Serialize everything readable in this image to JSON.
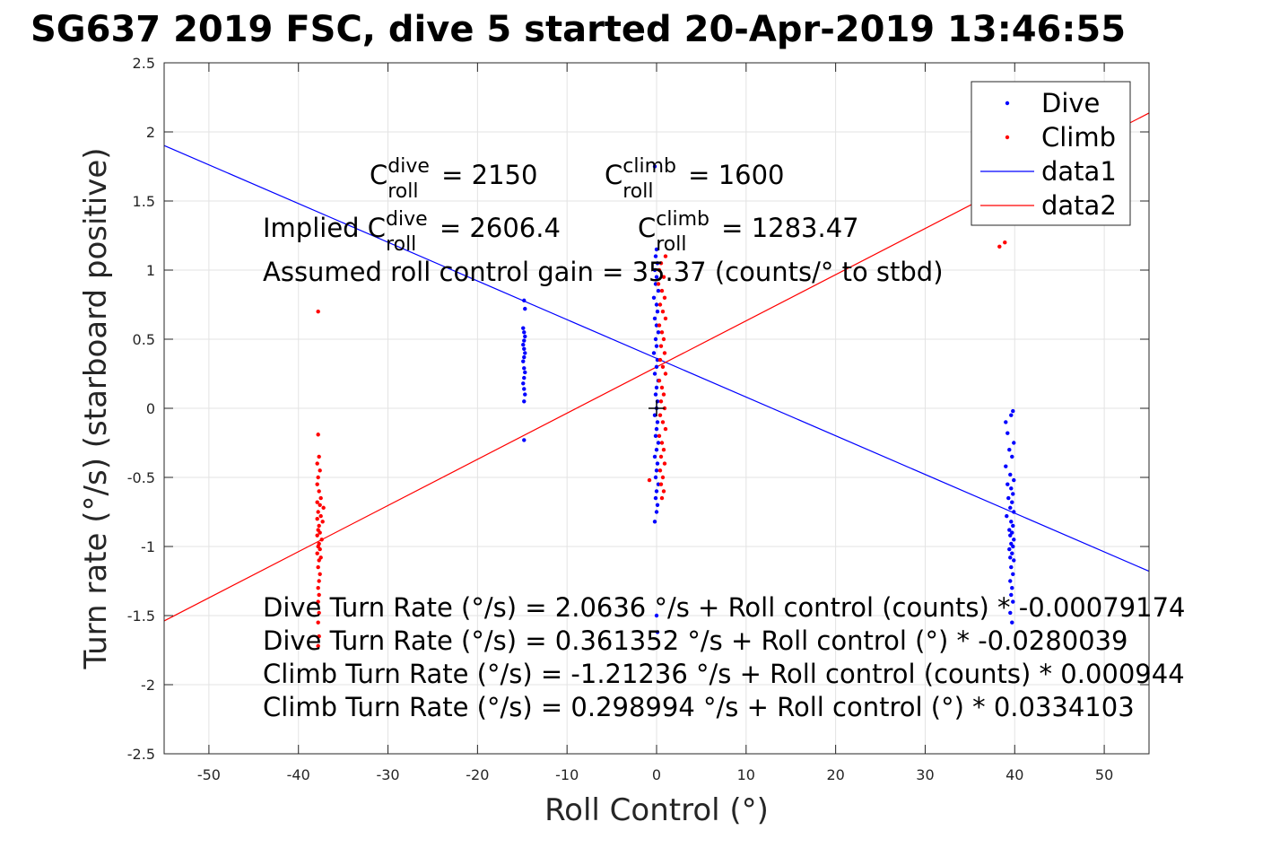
{
  "chart_data": {
    "type": "scatter",
    "title": "SG637 2019 FSC, dive 5 started 20-Apr-2019 13:46:55",
    "xlabel": "Roll Control (°)",
    "ylabel": "Turn rate (°/s) (starboard positive)",
    "xlim": [
      -55,
      55
    ],
    "ylim": [
      -2.5,
      2.5
    ],
    "xticks": [
      -50,
      -40,
      -30,
      -20,
      -10,
      0,
      10,
      20,
      30,
      40,
      50
    ],
    "yticks": [
      -2.5,
      -2,
      -1.5,
      -1,
      -0.5,
      0,
      0.5,
      1,
      1.5,
      2,
      2.5
    ],
    "xtick_labels": [
      "-50",
      "-40",
      "-30",
      "-20",
      "-10",
      "0",
      "10",
      "20",
      "30",
      "40",
      "50"
    ],
    "ytick_labels": [
      "-2.5",
      "-2",
      "-1.5",
      "-1",
      "-0.5",
      "0",
      "0.5",
      "1",
      "1.5",
      "2",
      "2.5"
    ],
    "grid": true,
    "legend_position": "top-right",
    "legend": [
      "Dive",
      "Climb",
      "data1",
      "data2"
    ],
    "series": [
      {
        "name": "Dive",
        "kind": "points",
        "color": "#0000ff",
        "points": [
          [
            -14.8,
            0.78
          ],
          [
            -14.7,
            0.72
          ],
          [
            -14.9,
            0.58
          ],
          [
            -14.8,
            0.55
          ],
          [
            -14.7,
            0.52
          ],
          [
            -14.8,
            0.49
          ],
          [
            -14.9,
            0.46
          ],
          [
            -14.8,
            0.43
          ],
          [
            -14.7,
            0.4
          ],
          [
            -14.8,
            0.37
          ],
          [
            -14.9,
            0.34
          ],
          [
            -14.8,
            0.29
          ],
          [
            -14.7,
            0.26
          ],
          [
            -14.8,
            0.22
          ],
          [
            -14.9,
            0.18
          ],
          [
            -14.8,
            0.14
          ],
          [
            -14.7,
            0.1
          ],
          [
            -14.8,
            0.05
          ],
          [
            -14.8,
            -0.23
          ],
          [
            -0.2,
            1.75
          ],
          [
            0.0,
            1.15
          ],
          [
            -0.1,
            1.1
          ],
          [
            0.1,
            1.05
          ],
          [
            -0.2,
            1.0
          ],
          [
            0.0,
            0.95
          ],
          [
            -0.1,
            0.9
          ],
          [
            0.2,
            0.85
          ],
          [
            -0.3,
            0.8
          ],
          [
            0.0,
            0.75
          ],
          [
            0.1,
            0.7
          ],
          [
            -0.2,
            0.65
          ],
          [
            0.0,
            0.6
          ],
          [
            0.2,
            0.55
          ],
          [
            -0.1,
            0.5
          ],
          [
            0.0,
            0.45
          ],
          [
            -0.3,
            0.4
          ],
          [
            0.1,
            0.35
          ],
          [
            0.0,
            0.3
          ],
          [
            -0.2,
            0.25
          ],
          [
            0.2,
            0.2
          ],
          [
            0.0,
            0.15
          ],
          [
            -0.1,
            0.1
          ],
          [
            0.1,
            0.05
          ],
          [
            0.0,
            0.0
          ],
          [
            -0.2,
            -0.05
          ],
          [
            0.1,
            -0.1
          ],
          [
            0.0,
            -0.15
          ],
          [
            -0.1,
            -0.2
          ],
          [
            0.2,
            -0.25
          ],
          [
            0.0,
            -0.3
          ],
          [
            -0.2,
            -0.35
          ],
          [
            0.1,
            -0.4
          ],
          [
            0.0,
            -0.45
          ],
          [
            -0.1,
            -0.5
          ],
          [
            0.2,
            -0.55
          ],
          [
            0.0,
            -0.6
          ],
          [
            -0.1,
            -0.65
          ],
          [
            0.1,
            -0.7
          ],
          [
            0.0,
            -0.75
          ],
          [
            -0.2,
            -0.82
          ],
          [
            0.0,
            -1.5
          ],
          [
            0.1,
            -1.62
          ],
          [
            39.0,
            -0.1
          ],
          [
            39.8,
            -0.02
          ],
          [
            39.6,
            -0.05
          ],
          [
            39.2,
            -0.18
          ],
          [
            39.9,
            -0.25
          ],
          [
            39.4,
            -0.3
          ],
          [
            39.7,
            -0.35
          ],
          [
            39.0,
            -0.42
          ],
          [
            39.5,
            -0.48
          ],
          [
            39.9,
            -0.52
          ],
          [
            39.2,
            -0.55
          ],
          [
            39.6,
            -0.58
          ],
          [
            39.8,
            -0.62
          ],
          [
            39.3,
            -0.65
          ],
          [
            39.7,
            -0.68
          ],
          [
            39.5,
            -0.72
          ],
          [
            39.9,
            -0.75
          ],
          [
            39.1,
            -0.78
          ],
          [
            39.6,
            -0.82
          ],
          [
            39.8,
            -0.85
          ],
          [
            39.4,
            -0.88
          ],
          [
            39.7,
            -0.9
          ],
          [
            39.5,
            -0.92
          ],
          [
            39.9,
            -0.95
          ],
          [
            39.6,
            -0.98
          ],
          [
            39.8,
            -1.0
          ],
          [
            39.4,
            -1.02
          ],
          [
            39.7,
            -1.05
          ],
          [
            39.5,
            -1.08
          ],
          [
            39.9,
            -1.1
          ],
          [
            39.6,
            -1.15
          ],
          [
            39.8,
            -1.2
          ],
          [
            39.5,
            -1.25
          ],
          [
            39.7,
            -1.3
          ],
          [
            39.6,
            -1.35
          ],
          [
            39.8,
            -1.4
          ],
          [
            39.5,
            -1.48
          ],
          [
            39.7,
            -1.55
          ]
        ]
      },
      {
        "name": "Climb",
        "kind": "points",
        "color": "#ff0000",
        "points": [
          [
            -37.8,
            0.7
          ],
          [
            -37.8,
            -0.19
          ],
          [
            -37.7,
            -0.35
          ],
          [
            -37.9,
            -0.4
          ],
          [
            -37.6,
            -0.45
          ],
          [
            -37.8,
            -0.5
          ],
          [
            -37.9,
            -0.55
          ],
          [
            -37.7,
            -0.6
          ],
          [
            -37.5,
            -0.65
          ],
          [
            -37.9,
            -0.68
          ],
          [
            -37.6,
            -0.7
          ],
          [
            -37.2,
            -0.72
          ],
          [
            -37.8,
            -0.75
          ],
          [
            -37.5,
            -0.78
          ],
          [
            -37.9,
            -0.8
          ],
          [
            -37.3,
            -0.82
          ],
          [
            -37.7,
            -0.85
          ],
          [
            -37.8,
            -0.88
          ],
          [
            -37.6,
            -0.9
          ],
          [
            -37.9,
            -0.92
          ],
          [
            -37.4,
            -0.95
          ],
          [
            -37.7,
            -0.98
          ],
          [
            -37.8,
            -1.0
          ],
          [
            -37.6,
            -1.02
          ],
          [
            -37.9,
            -1.05
          ],
          [
            -37.5,
            -1.08
          ],
          [
            -37.7,
            -1.1
          ],
          [
            -37.8,
            -1.15
          ],
          [
            -37.6,
            -1.2
          ],
          [
            -37.7,
            -1.25
          ],
          [
            -37.8,
            -1.3
          ],
          [
            -37.7,
            -1.35
          ],
          [
            -37.8,
            -1.4
          ],
          [
            -37.7,
            -1.48
          ],
          [
            -37.8,
            -1.55
          ],
          [
            -37.7,
            -1.65
          ],
          [
            -37.8,
            -1.72
          ],
          [
            0.5,
            1.05
          ],
          [
            0.3,
            1.0
          ],
          [
            0.8,
            0.95
          ],
          [
            0.2,
            0.9
          ],
          [
            0.6,
            0.85
          ],
          [
            0.9,
            0.8
          ],
          [
            0.4,
            0.75
          ],
          [
            0.7,
            0.7
          ],
          [
            1.0,
            0.65
          ],
          [
            0.3,
            0.6
          ],
          [
            0.6,
            0.55
          ],
          [
            0.8,
            0.5
          ],
          [
            0.5,
            0.45
          ],
          [
            0.9,
            0.4
          ],
          [
            0.4,
            0.35
          ],
          [
            0.7,
            0.3
          ],
          [
            1.0,
            0.25
          ],
          [
            0.3,
            0.2
          ],
          [
            0.6,
            0.15
          ],
          [
            0.8,
            0.1
          ],
          [
            0.5,
            0.05
          ],
          [
            0.9,
            0.0
          ],
          [
            0.4,
            -0.05
          ],
          [
            0.7,
            -0.1
          ],
          [
            1.0,
            -0.15
          ],
          [
            0.3,
            -0.2
          ],
          [
            0.6,
            -0.25
          ],
          [
            0.8,
            -0.3
          ],
          [
            0.5,
            -0.35
          ],
          [
            0.9,
            -0.4
          ],
          [
            0.4,
            -0.45
          ],
          [
            0.7,
            -0.5
          ],
          [
            -0.8,
            -0.52
          ],
          [
            0.5,
            -0.55
          ],
          [
            0.8,
            -0.6
          ],
          [
            0.6,
            -0.65
          ],
          [
            1.0,
            1.1
          ],
          [
            38.3,
            1.17
          ],
          [
            38.9,
            1.2
          ]
        ]
      },
      {
        "name": "data1",
        "kind": "line",
        "color": "#0000ff",
        "slope": -0.0280039,
        "intercept": 0.361352,
        "x_range": [
          -55,
          55
        ]
      },
      {
        "name": "data2",
        "kind": "line",
        "color": "#ff0000",
        "slope": 0.0334103,
        "intercept": 0.298994,
        "x_range": [
          -55,
          55
        ]
      }
    ],
    "annotations": [
      {
        "prefix": "",
        "sub": "roll",
        "sup": "dive",
        "suffix": "= 2150",
        "base": "C"
      },
      {
        "prefix": "",
        "sub": "roll",
        "sup": "climb",
        "suffix": "= 1600",
        "base": "C"
      },
      {
        "prefix": "Implied ",
        "sub": "roll",
        "sup": "dive",
        "suffix": "= 2606.4",
        "base": "C"
      },
      {
        "prefix": "",
        "sub": "roll",
        "sup": "climb",
        "suffix": "= 1283.47",
        "base": "C"
      }
    ],
    "text_lines": [
      "Assumed roll control gain = 35.37 (counts/° to stbd)",
      "Dive Turn Rate (°/s) = 2.0636 °/s + Roll control (counts) * -0.00079174",
      "Dive Turn Rate (°/s) = 0.361352 °/s + Roll control (°) * -0.0280039",
      "Climb Turn Rate (°/s) = -1.21236 °/s + Roll control (counts) * 0.000944",
      "Climb Turn Rate (°/s) = 0.298994 °/s + Roll control (°) * 0.0334103"
    ],
    "origin_marker": "+"
  }
}
